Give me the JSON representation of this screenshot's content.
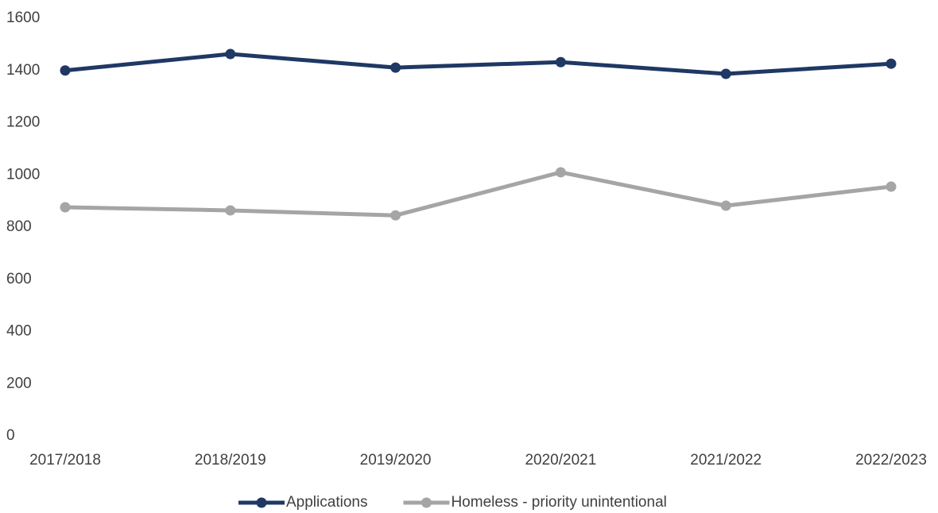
{
  "chart_data": {
    "type": "line",
    "categories": [
      "2017/2018",
      "2018/2019",
      "2019/2020",
      "2020/2021",
      "2021/2022",
      "2022/2023"
    ],
    "series": [
      {
        "name": "Applications",
        "color": "#1f3864",
        "values": [
          1400,
          1463,
          1411,
          1432,
          1387,
          1426
        ]
      },
      {
        "name": "Homeless - priority unintentional",
        "color": "#a5a5a5",
        "values": [
          876,
          864,
          845,
          1010,
          882,
          955
        ]
      }
    ],
    "ylim": [
      0,
      1600
    ],
    "yticks": [
      0,
      200,
      400,
      600,
      800,
      1000,
      1200,
      1400,
      1600
    ],
    "grid": false,
    "legend": "bottom"
  }
}
